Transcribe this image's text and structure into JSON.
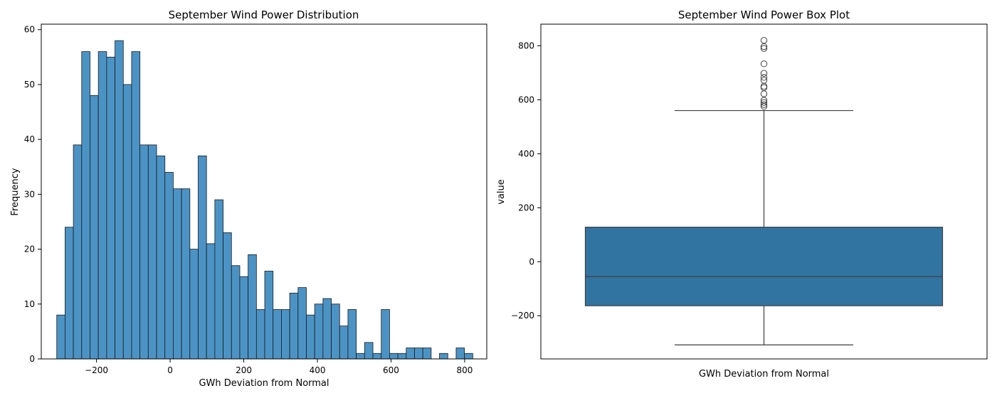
{
  "chart_data": [
    {
      "type": "bar",
      "subtype": "histogram",
      "title": "September Wind Power Distribution",
      "xlabel": "GWh Deviation from Normal",
      "ylabel": "Frequency",
      "xlim": [
        -350,
        860
      ],
      "ylim": [
        0,
        61
      ],
      "xticks": [
        -200,
        0,
        200,
        400,
        600,
        800
      ],
      "yticks": [
        0,
        10,
        20,
        30,
        40,
        50,
        60
      ],
      "bin_start": -308,
      "bin_width": 22.6,
      "values": [
        8,
        24,
        39,
        56,
        48,
        56,
        55,
        58,
        50,
        56,
        39,
        39,
        37,
        34,
        31,
        31,
        20,
        37,
        21,
        29,
        23,
        17,
        15,
        19,
        9,
        16,
        9,
        9,
        12,
        13,
        8,
        10,
        11,
        10,
        6,
        9,
        1,
        3,
        1,
        9,
        1,
        1,
        2,
        2,
        2,
        0,
        1,
        0,
        2,
        1
      ],
      "bar_color": "#4c93c5",
      "edge_color": "#1a1a1a",
      "grid": false
    },
    {
      "type": "box",
      "title": "September Wind Power Box Plot",
      "xlabel": "GWh Deviation from Normal",
      "ylabel": "value",
      "ylim": [
        -360,
        880
      ],
      "yticks": [
        -200,
        0,
        200,
        400,
        600,
        800
      ],
      "whisker_low": -308,
      "q1": -163,
      "median": -55,
      "q3": 128,
      "whisker_high": 560,
      "outliers": [
        575,
        582,
        590,
        598,
        622,
        645,
        650,
        672,
        683,
        698,
        733,
        790,
        797,
        820
      ],
      "box_color": "#3274a1",
      "line_color": "#3f3f3f",
      "grid": false
    }
  ]
}
